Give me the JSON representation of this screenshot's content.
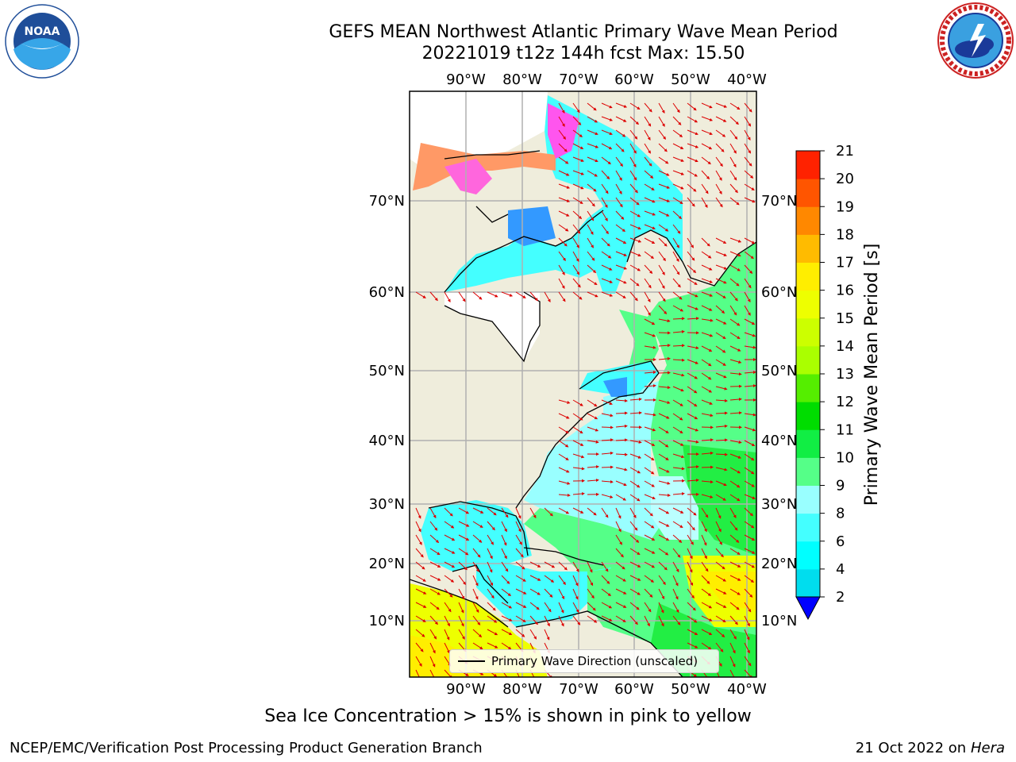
{
  "header": {
    "title_line1": "GEFS MEAN Northwest Atlantic Primary Wave Mean Period",
    "title_line2": "20221019 t12z 144h fcst   Max: 15.50"
  },
  "map": {
    "lon_labels": [
      "90°W",
      "80°W",
      "70°W",
      "60°W",
      "50°W",
      "40°W"
    ],
    "lat_labels": [
      "70°N",
      "60°N",
      "50°N",
      "40°N",
      "30°N",
      "20°N",
      "10°N"
    ],
    "legend_label": "Primary Wave Direction (unscaled)"
  },
  "colorbar": {
    "label": "Primary Wave Mean Period [s]",
    "ticks": [
      "2",
      "4",
      "6",
      "8",
      "9",
      "10",
      "11",
      "12",
      "13",
      "14",
      "15",
      "16",
      "17",
      "18",
      "19",
      "20",
      "21"
    ],
    "colors": [
      "#0066ff",
      "#00ddee",
      "#00ffff",
      "#44ffff",
      "#99ffff",
      "#55ff88",
      "#11ee44",
      "#00dd00",
      "#55ee00",
      "#aaff00",
      "#ccff00",
      "#eeff00",
      "#ffee00",
      "#ffbb00",
      "#ff8800",
      "#ff5500",
      "#ff2200",
      "#ff0000"
    ],
    "under_color": "#0000ff"
  },
  "footer": {
    "sea_ice_note": "Sea Ice Concentration > 15% is shown in pink to yellow",
    "left": "NCEP/EMC/Verification Post Processing Product Generation Branch",
    "right_date": "21 Oct 2022 on",
    "right_host": "Hera"
  },
  "logos": {
    "noaa_text": "NOAA",
    "nws_text": "NATIONAL WEATHER SERVICE"
  }
}
